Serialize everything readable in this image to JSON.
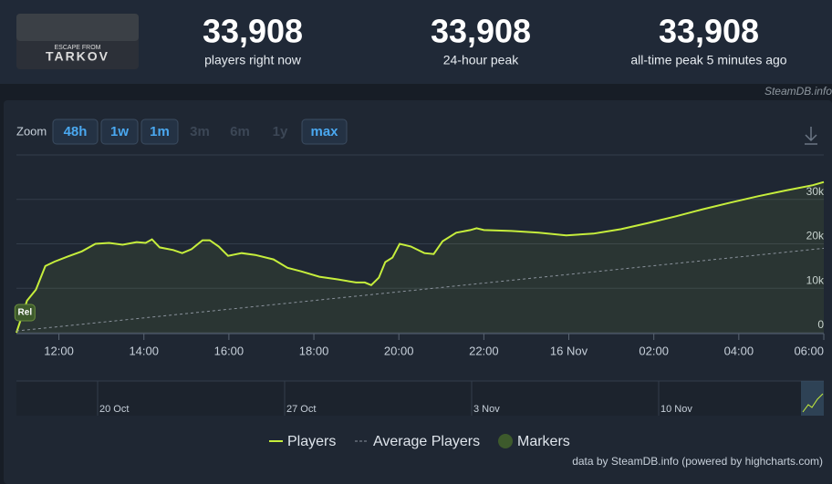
{
  "header": {
    "logo_lines": [
      "ESCAPE FROM",
      "TARKOV"
    ],
    "stats": [
      {
        "value": "33,908",
        "label": "players right now"
      },
      {
        "value": "33,908",
        "label": "24-hour peak"
      },
      {
        "value": "33,908",
        "label": "all-time peak 5 minutes ago"
      }
    ],
    "source": "SteamDB.info"
  },
  "zoom": {
    "label": "Zoom",
    "buttons": [
      {
        "label": "48h",
        "enabled": true
      },
      {
        "label": "1w",
        "enabled": true
      },
      {
        "label": "1m",
        "enabled": true
      },
      {
        "label": "3m",
        "enabled": false
      },
      {
        "label": "6m",
        "enabled": false
      },
      {
        "label": "1y",
        "enabled": false
      },
      {
        "label": "max",
        "enabled": true
      }
    ]
  },
  "chart_data": {
    "type": "line",
    "xlim": [
      -1,
      18
    ],
    "xticks": [
      {
        "value": 0,
        "label": "12:00"
      },
      {
        "value": 2,
        "label": "14:00"
      },
      {
        "value": 4,
        "label": "16:00"
      },
      {
        "value": 6,
        "label": "18:00"
      },
      {
        "value": 8,
        "label": "20:00"
      },
      {
        "value": 10,
        "label": "22:00"
      },
      {
        "value": 12,
        "label": "16 Nov"
      },
      {
        "value": 14,
        "label": "02:00"
      },
      {
        "value": 16,
        "label": "04:00"
      },
      {
        "value": 18,
        "label": "06:00"
      }
    ],
    "ylim": [
      0,
      40000
    ],
    "yticks": [
      0,
      {
        "value": 10000,
        "label": "10k"
      },
      {
        "value": 20000,
        "label": "20k"
      },
      {
        "value": 30000,
        "label": "30k"
      }
    ],
    "grid": true,
    "series": [
      {
        "name": "Players",
        "color": "#c6ee3c",
        "x": [
          -1,
          -0.75,
          -0.54,
          -0.32,
          -0.1,
          0.2,
          0.54,
          0.86,
          1.18,
          1.5,
          1.83,
          2.04,
          2.19,
          2.37,
          2.69,
          2.9,
          3.12,
          3.38,
          3.55,
          3.76,
          3.98,
          4.3,
          4.62,
          5.05,
          5.38,
          5.7,
          6.13,
          6.56,
          6.99,
          7.2,
          7.35,
          7.53,
          7.68,
          7.85,
          8.02,
          8.28,
          8.6,
          8.82,
          9.03,
          9.35,
          9.68,
          9.83,
          10,
          10.65,
          11.29,
          11.94,
          12.58,
          13.23,
          13.87,
          14.52,
          15.16,
          15.81,
          16.45,
          17.1,
          17.74,
          18
        ],
        "values": [
          0,
          7200,
          9700,
          15000,
          16000,
          17100,
          18300,
          20000,
          20200,
          19800,
          20400,
          20200,
          21000,
          19200,
          18600,
          17900,
          18800,
          20800,
          20800,
          19400,
          17300,
          17900,
          17500,
          16500,
          14600,
          13800,
          12600,
          12000,
          11300,
          11300,
          10700,
          12400,
          15900,
          16900,
          20000,
          19400,
          17900,
          17700,
          20600,
          22500,
          23100,
          23500,
          23100,
          22900,
          22500,
          21900,
          22300,
          23300,
          24700,
          26200,
          27800,
          29300,
          30700,
          32000,
          33200,
          33908
        ]
      },
      {
        "name": "Average Players",
        "color": "#8a929c",
        "x": [
          -1,
          18
        ],
        "values": [
          400,
          19000
        ]
      }
    ],
    "markers": {
      "name": "Markers",
      "color": "#3d5a2c",
      "items": [
        {
          "label": "Rel",
          "x": -0.8
        }
      ]
    },
    "navigator": {
      "labels": [
        "20 Oct",
        "27 Oct",
        "3 Nov",
        "10 Nov"
      ]
    },
    "credits": "data by SteamDB.info (powered by highcharts.com)"
  }
}
